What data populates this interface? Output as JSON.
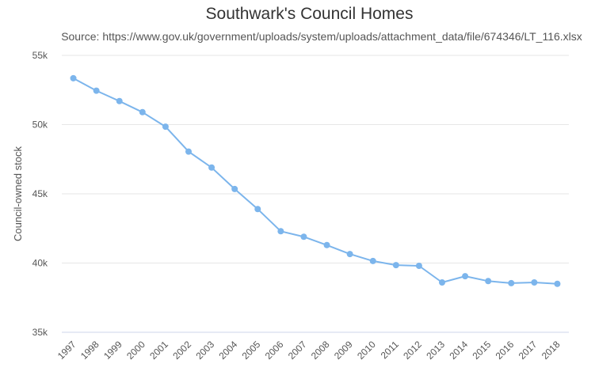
{
  "title": "Southwark's Council Homes",
  "subtitle": "Source: https://www.gov.uk/government/uploads/system/uploads/attachment_data/file/674346/LT_116.xlsx",
  "chart_data": {
    "type": "line",
    "title": "Southwark's Council Homes",
    "subtitle": "Source: https://www.gov.uk/government/uploads/system/uploads/attachment_data/file/674346/LT_116.xlsx",
    "xlabel": "",
    "ylabel": "Council-owned stock",
    "categories": [
      "1997",
      "1998",
      "1999",
      "2000",
      "2001",
      "2002",
      "2003",
      "2004",
      "2005",
      "2006",
      "2007",
      "2008",
      "2009",
      "2010",
      "2011",
      "2012",
      "2013",
      "2014",
      "2015",
      "2016",
      "2017",
      "2018"
    ],
    "series": [
      {
        "values": [
          53350,
          52450,
          51700,
          50900,
          49850,
          48050,
          46900,
          45350,
          43900,
          42300,
          41900,
          41300,
          40650,
          40150,
          39850,
          39800,
          38600,
          39050,
          38700,
          38550,
          38600,
          38500
        ]
      }
    ],
    "ylim": [
      35000,
      55000
    ],
    "yticks": [
      35000,
      40000,
      45000,
      50000,
      55000
    ],
    "ytick_labels": [
      "35k",
      "40k",
      "45k",
      "50k",
      "55k"
    ],
    "grid": true,
    "colors": {
      "line": "#7cb5ec",
      "grid": "#e6e6e6",
      "axis": "#ccd6eb"
    }
  }
}
